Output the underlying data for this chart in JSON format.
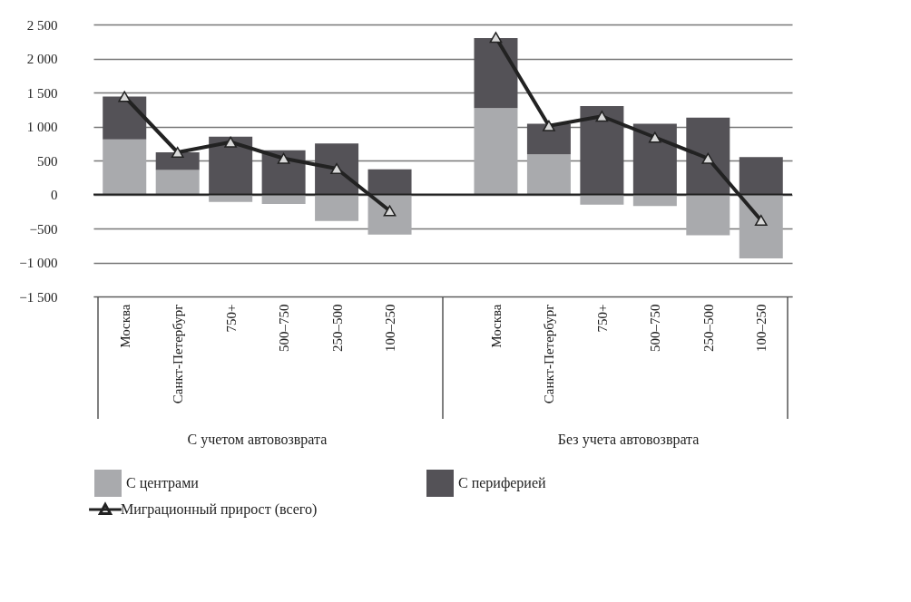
{
  "chart_data": {
    "type": "bar",
    "stacked": true,
    "categories": [
      "Москва",
      "Санкт-Петербург",
      "750+",
      "500–750",
      "250–500",
      "100–250",
      null,
      "Москва",
      "Санкт-Петербург",
      "750+",
      "500–750",
      "250–500",
      "100–250"
    ],
    "series": [
      {
        "name": "С центрами",
        "color": "#a9aaad",
        "values": [
          810,
          360,
          -110,
          -140,
          -390,
          -590,
          null,
          1270,
          590,
          -150,
          -170,
          -600,
          -940
        ]
      },
      {
        "name": "С периферией",
        "color": "#545257",
        "values": [
          630,
          260,
          850,
          650,
          750,
          370,
          null,
          1030,
          450,
          1300,
          1040,
          1130,
          550
        ]
      },
      {
        "name": "Миграционный прирост (всего)",
        "type": "line",
        "color": "#222222",
        "marker": "triangle",
        "values": [
          1440,
          620,
          770,
          530,
          380,
          -240,
          null,
          2310,
          1010,
          1150,
          840,
          530,
          -380
        ]
      }
    ],
    "ylim": [
      -1500,
      2500
    ],
    "yticks": [
      {
        "value": -1500,
        "label": "−1 500"
      },
      {
        "value": -1000,
        "label": "−1 000"
      },
      {
        "value": -500,
        "label": "−500"
      },
      0,
      500,
      {
        "value": 1000,
        "label": "1 000"
      },
      {
        "value": 1500,
        "label": "1 500"
      },
      {
        "value": 2000,
        "label": "2 000"
      },
      {
        "value": 2500,
        "label": "2 500"
      }
    ],
    "grid": "y",
    "ref_lines": [
      {
        "axis": "y",
        "value": 0,
        "color": "#222222"
      }
    ],
    "annotations": [
      "С учетом автовозврата",
      "Без учета автовозврата"
    ],
    "legend": "bottom"
  }
}
